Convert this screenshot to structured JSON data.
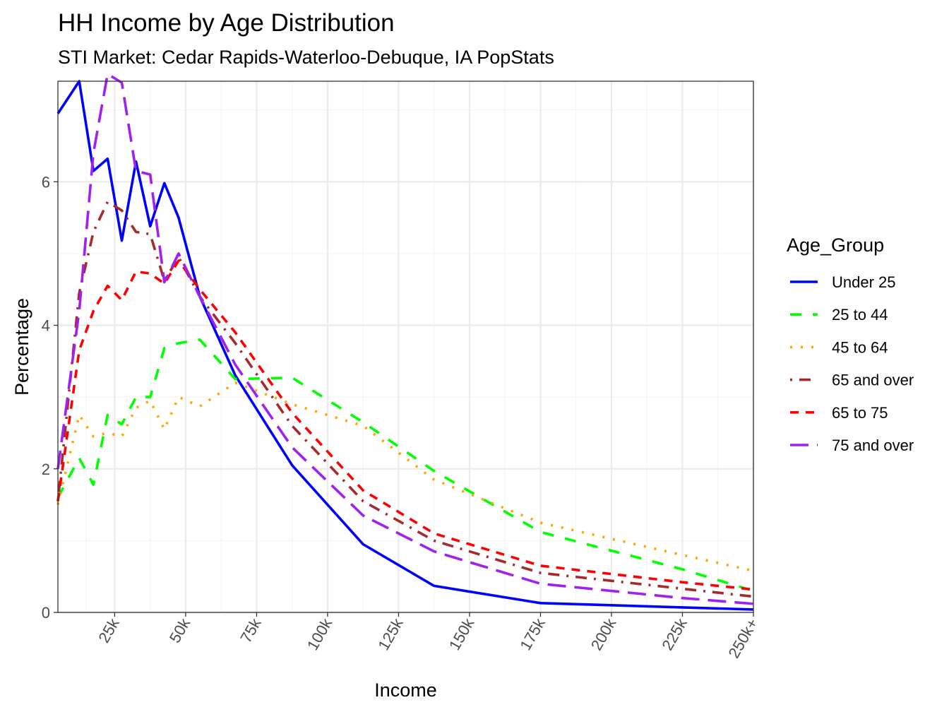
{
  "chart_data": {
    "type": "line",
    "title": "HH Income by Age Distribution",
    "subtitle": "STI Market: Cedar Rapids-Waterloo-Debuque, IA PopStats",
    "xlabel": "Income",
    "ylabel": "Percentage",
    "xlim": [
      5,
      250
    ],
    "ylim": [
      0,
      7.4
    ],
    "x_ticks": [
      {
        "value": 25,
        "label": "25k"
      },
      {
        "value": 50,
        "label": "50k"
      },
      {
        "value": 75,
        "label": "75k"
      },
      {
        "value": 100,
        "label": "100k"
      },
      {
        "value": 125,
        "label": "125k"
      },
      {
        "value": 150,
        "label": "150k"
      },
      {
        "value": 175,
        "label": "175k"
      },
      {
        "value": 200,
        "label": "200k"
      },
      {
        "value": 225,
        "label": "225k"
      },
      {
        "value": 250,
        "label": "250k+"
      }
    ],
    "y_ticks": [
      {
        "value": 0,
        "label": "0"
      },
      {
        "value": 2,
        "label": "2"
      },
      {
        "value": 4,
        "label": "4"
      },
      {
        "value": 6,
        "label": "6"
      }
    ],
    "grid": true,
    "legend_title": "Age_Group",
    "legend_position": "right",
    "x": [
      5,
      12.5,
      17.5,
      22.5,
      27.5,
      32.5,
      37.5,
      42.5,
      47.5,
      55,
      67.5,
      87.5,
      112.5,
      137.5,
      175,
      225,
      250
    ],
    "series": [
      {
        "name": "Under 25",
        "color": "#0000ff",
        "dash": "solid",
        "values": [
          6.95,
          7.4,
          6.15,
          6.32,
          5.18,
          6.28,
          5.38,
          5.98,
          5.5,
          4.4,
          3.3,
          2.05,
          0.95,
          0.37,
          0.13,
          0.07,
          0.04
        ]
      },
      {
        "name": "25 to 44",
        "color": "#00ff00",
        "dash": "dashed",
        "values": [
          1.6,
          2.15,
          1.78,
          2.75,
          2.62,
          3.0,
          3.0,
          3.68,
          3.75,
          3.8,
          3.25,
          3.27,
          2.65,
          1.97,
          1.12,
          0.6,
          0.3
        ]
      },
      {
        "name": "45 to 64",
        "color": "#ffa500",
        "dash": "dotted",
        "values": [
          1.5,
          2.75,
          2.45,
          2.5,
          2.45,
          2.85,
          2.95,
          2.55,
          3.0,
          2.87,
          3.2,
          2.9,
          2.6,
          1.85,
          1.25,
          0.8,
          0.58
        ]
      },
      {
        "name": "65 and over",
        "color": "#a52a2a",
        "dash": "dotdash",
        "values": [
          1.55,
          4.45,
          5.3,
          5.72,
          5.6,
          5.3,
          5.27,
          4.62,
          4.95,
          4.4,
          3.75,
          2.6,
          1.55,
          1.0,
          0.55,
          0.33,
          0.22
        ]
      },
      {
        "name": "65 to 75",
        "color": "#ff0000",
        "dash": "dashed-short",
        "values": [
          1.55,
          3.65,
          4.2,
          4.55,
          4.35,
          4.75,
          4.72,
          4.58,
          4.9,
          4.5,
          3.9,
          2.78,
          1.7,
          1.1,
          0.65,
          0.42,
          0.32
        ]
      },
      {
        "name": "75 and over",
        "color": "#a020f0",
        "dash": "longdash",
        "values": [
          2.0,
          4.2,
          6.4,
          7.5,
          7.38,
          6.15,
          6.1,
          4.6,
          5.0,
          4.4,
          3.45,
          2.3,
          1.35,
          0.85,
          0.4,
          0.2,
          0.12
        ]
      }
    ]
  }
}
